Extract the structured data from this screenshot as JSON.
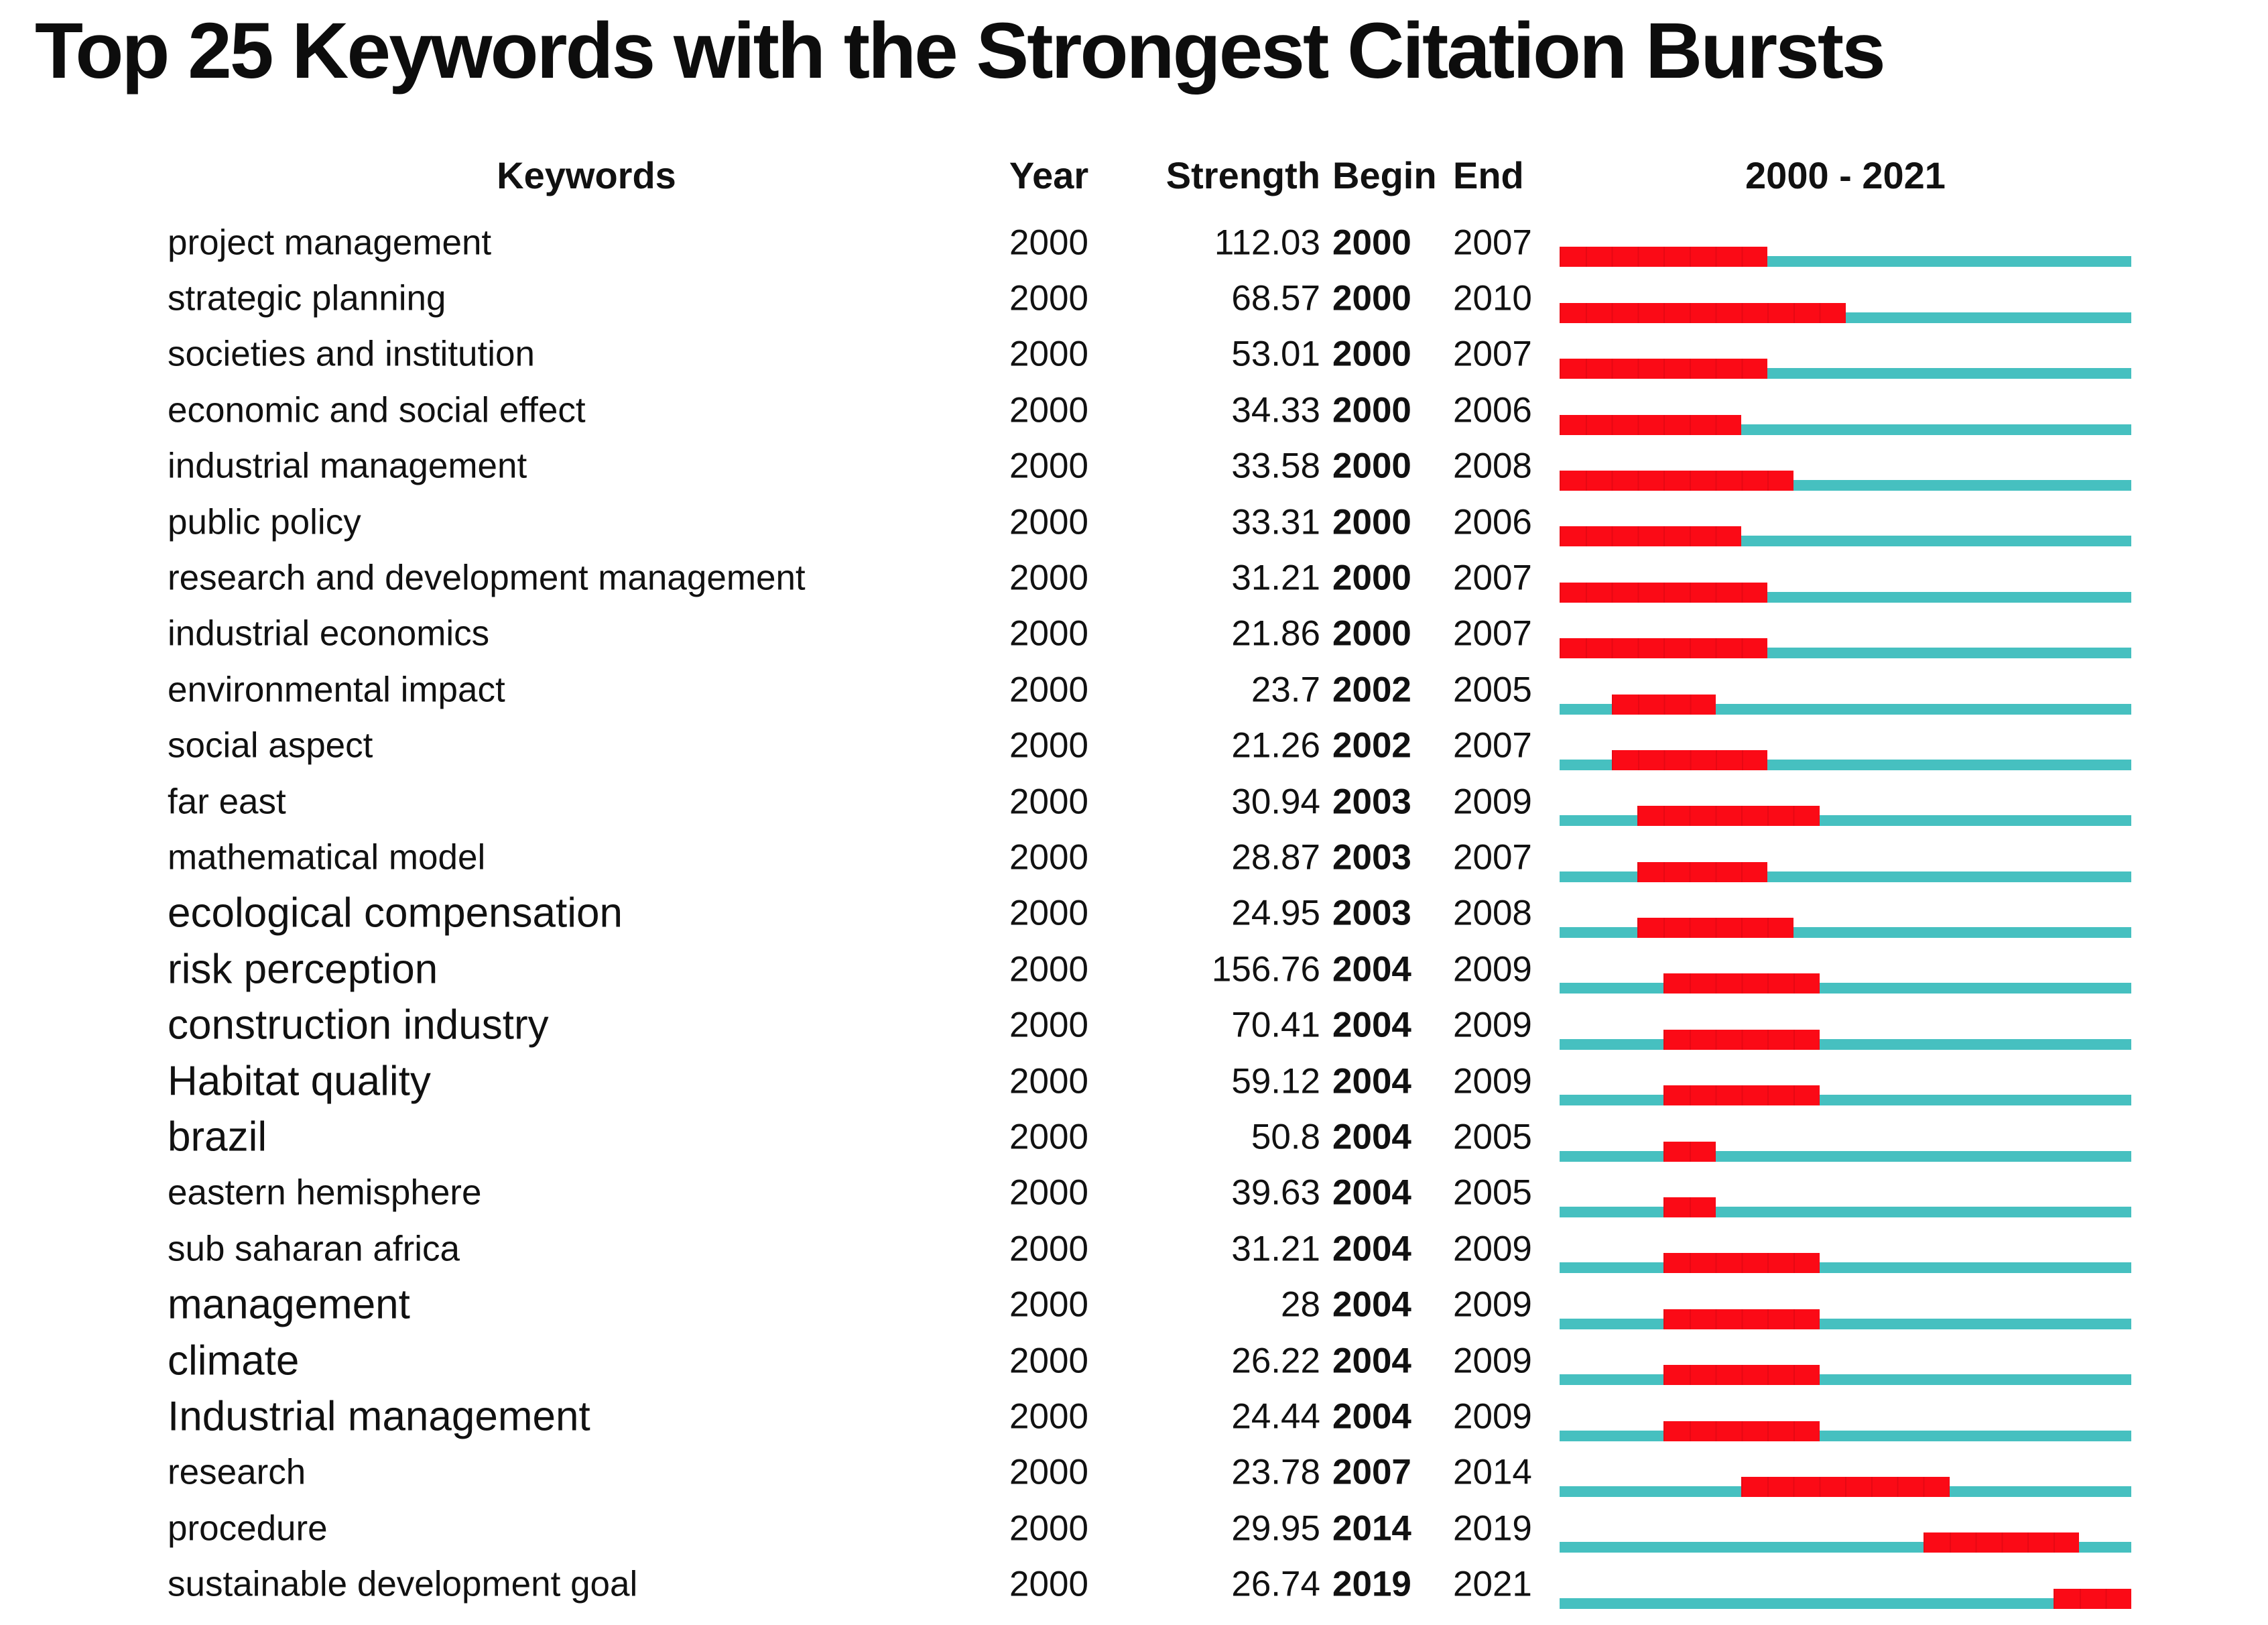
{
  "title": "Top 25 Keywords with the Strongest Citation Bursts",
  "colors": {
    "burst_red": "#fb0a16",
    "timeline_teal": "#46c0c0",
    "text": "#111111"
  },
  "chart_data": {
    "type": "table",
    "title": "Top 25 Keywords with the Strongest Citation Bursts",
    "columns": [
      "Keywords",
      "Year",
      "Strength",
      "Begin",
      "End",
      "2000 - 2021"
    ],
    "timeline_range": [
      2000,
      2021
    ],
    "legend": {
      "burst_segment": "red = citation burst period (Begin to End)",
      "track": "teal = full 2000 - 2021 timeline"
    },
    "rows": [
      {
        "keyword": "project management",
        "year": "2000",
        "strength": "112.03",
        "begin": 2000,
        "end": 2007,
        "emphasized": false
      },
      {
        "keyword": "strategic planning",
        "year": "2000",
        "strength": "68.57",
        "begin": 2000,
        "end": 2010,
        "emphasized": false
      },
      {
        "keyword": "societies and institution",
        "year": "2000",
        "strength": "53.01",
        "begin": 2000,
        "end": 2007,
        "emphasized": false
      },
      {
        "keyword": "economic and social effect",
        "year": "2000",
        "strength": "34.33",
        "begin": 2000,
        "end": 2006,
        "emphasized": false
      },
      {
        "keyword": "industrial management",
        "year": "2000",
        "strength": "33.58",
        "begin": 2000,
        "end": 2008,
        "emphasized": false
      },
      {
        "keyword": "public policy",
        "year": "2000",
        "strength": "33.31",
        "begin": 2000,
        "end": 2006,
        "emphasized": false
      },
      {
        "keyword": "research and development management",
        "year": "2000",
        "strength": "31.21",
        "begin": 2000,
        "end": 2007,
        "emphasized": false
      },
      {
        "keyword": "industrial economics",
        "year": "2000",
        "strength": "21.86",
        "begin": 2000,
        "end": 2007,
        "emphasized": false
      },
      {
        "keyword": "environmental impact",
        "year": "2000",
        "strength": "23.7",
        "begin": 2002,
        "end": 2005,
        "emphasized": false
      },
      {
        "keyword": "social aspect",
        "year": "2000",
        "strength": "21.26",
        "begin": 2002,
        "end": 2007,
        "emphasized": false
      },
      {
        "keyword": "far east",
        "year": "2000",
        "strength": "30.94",
        "begin": 2003,
        "end": 2009,
        "emphasized": false
      },
      {
        "keyword": "mathematical model",
        "year": "2000",
        "strength": "28.87",
        "begin": 2003,
        "end": 2007,
        "emphasized": false
      },
      {
        "keyword": "ecological compensation",
        "year": "2000",
        "strength": "24.95",
        "begin": 2003,
        "end": 2008,
        "emphasized": true
      },
      {
        "keyword": "risk perception",
        "year": "2000",
        "strength": "156.76",
        "begin": 2004,
        "end": 2009,
        "emphasized": true
      },
      {
        "keyword": "construction industry",
        "year": "2000",
        "strength": "70.41",
        "begin": 2004,
        "end": 2009,
        "emphasized": true
      },
      {
        "keyword": "Habitat quality",
        "year": "2000",
        "strength": "59.12",
        "begin": 2004,
        "end": 2009,
        "emphasized": true
      },
      {
        "keyword": "brazil",
        "year": "2000",
        "strength": "50.8",
        "begin": 2004,
        "end": 2005,
        "emphasized": true
      },
      {
        "keyword": "eastern hemisphere",
        "year": "2000",
        "strength": "39.63",
        "begin": 2004,
        "end": 2005,
        "emphasized": false
      },
      {
        "keyword": "sub saharan africa",
        "year": "2000",
        "strength": "31.21",
        "begin": 2004,
        "end": 2009,
        "emphasized": false
      },
      {
        "keyword": "management",
        "year": "2000",
        "strength": "28",
        "begin": 2004,
        "end": 2009,
        "emphasized": true
      },
      {
        "keyword": "climate",
        "year": "2000",
        "strength": "26.22",
        "begin": 2004,
        "end": 2009,
        "emphasized": true
      },
      {
        "keyword": "Industrial management",
        "year": "2000",
        "strength": "24.44",
        "begin": 2004,
        "end": 2009,
        "emphasized": true
      },
      {
        "keyword": "research",
        "year": "2000",
        "strength": "23.78",
        "begin": 2007,
        "end": 2014,
        "emphasized": false
      },
      {
        "keyword": "procedure",
        "year": "2000",
        "strength": "29.95",
        "begin": 2014,
        "end": 2019,
        "emphasized": false
      },
      {
        "keyword": "sustainable development goal",
        "year": "2000",
        "strength": "26.74",
        "begin": 2019,
        "end": 2021,
        "emphasized": false
      }
    ]
  }
}
